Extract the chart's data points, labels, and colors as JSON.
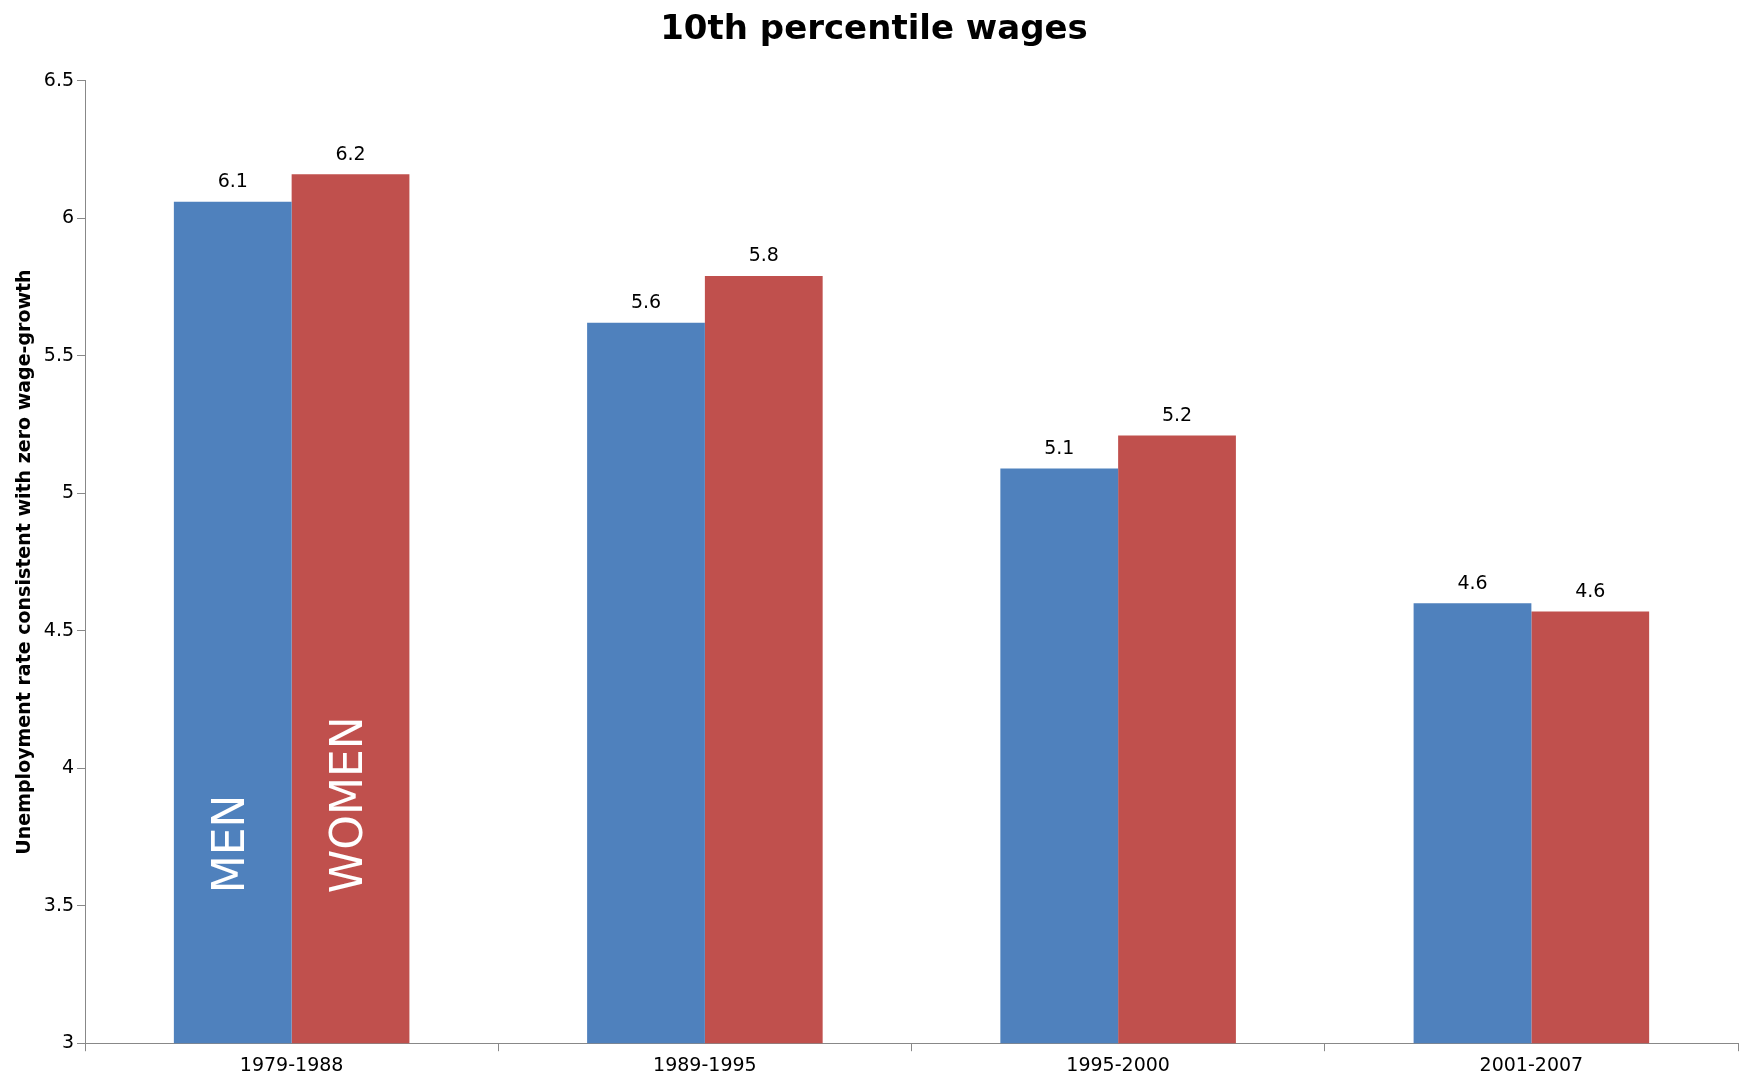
{
  "chart_data": {
    "type": "bar",
    "title": "10th percentile wages",
    "ylabel": "Unemployment rate consistent with zero wage-growth",
    "categories": [
      "1979-1988",
      "1989-1995",
      "1995-2000",
      "2001-2007"
    ],
    "series": [
      {
        "name": "MEN",
        "color": "#4f81bd",
        "values": [
          6.06,
          5.62,
          5.09,
          4.6
        ],
        "value_labels": [
          "6.1",
          "5.6",
          "5.1",
          "4.6"
        ]
      },
      {
        "name": "WOMEN",
        "color": "#c0504d",
        "values": [
          6.16,
          5.79,
          5.21,
          4.57
        ],
        "value_labels": [
          "6.2",
          "5.8",
          "5.2",
          "4.6"
        ]
      }
    ],
    "ylim": [
      3,
      6.5
    ],
    "yticks": [
      3,
      3.5,
      4,
      4.5,
      5,
      5.5,
      6,
      6.5
    ],
    "grid": false,
    "legend": false
  }
}
